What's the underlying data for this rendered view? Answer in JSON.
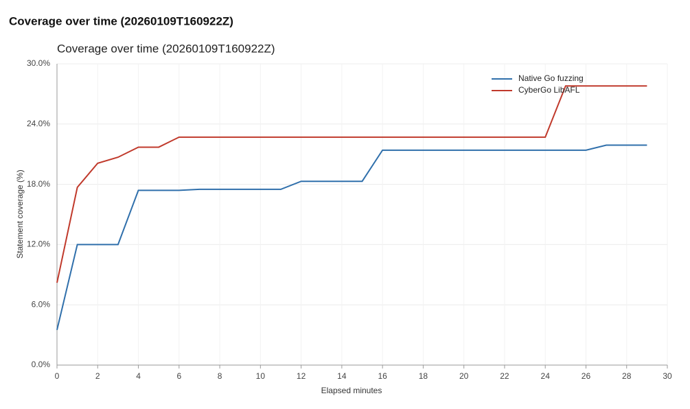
{
  "heading": "Coverage over time (20260109T160922Z)",
  "chart_data": {
    "type": "line",
    "title": "Coverage over time (20260109T160922Z)",
    "x_label": "Elapsed minutes",
    "y_label": "Statement coverage (%)",
    "x": [
      0,
      1,
      2,
      3,
      4,
      5,
      6,
      7,
      8,
      9,
      10,
      11,
      12,
      13,
      14,
      15,
      16,
      17,
      18,
      19,
      20,
      21,
      22,
      23,
      24,
      25,
      26,
      27,
      28,
      29
    ],
    "series": [
      {
        "name": "Native Go fuzzing",
        "color": "#2f6fab",
        "values": [
          3.5,
          12.0,
          12.0,
          12.0,
          17.4,
          17.4,
          17.4,
          17.5,
          17.5,
          17.5,
          17.5,
          17.5,
          18.3,
          18.3,
          18.3,
          18.3,
          21.4,
          21.4,
          21.4,
          21.4,
          21.4,
          21.4,
          21.4,
          21.4,
          21.4,
          21.4,
          21.4,
          21.9,
          21.9,
          21.9
        ]
      },
      {
        "name": "CyberGo LibAFL",
        "color": "#c0392b",
        "values": [
          8.2,
          17.7,
          20.1,
          20.7,
          21.7,
          21.7,
          22.7,
          22.7,
          22.7,
          22.7,
          22.7,
          22.7,
          22.7,
          22.7,
          22.7,
          22.7,
          22.7,
          22.7,
          22.7,
          22.7,
          22.7,
          22.7,
          22.7,
          22.7,
          22.7,
          27.8,
          27.8,
          27.8,
          27.8,
          27.8
        ]
      }
    ],
    "xlim": [
      0,
      30
    ],
    "ylim": [
      0,
      30
    ],
    "xticks": [
      0,
      2,
      4,
      6,
      8,
      10,
      12,
      14,
      16,
      18,
      20,
      22,
      24,
      26,
      28,
      30
    ],
    "yticks": [
      {
        "value": 0,
        "label": "0.0%"
      },
      {
        "value": 6,
        "label": "6.0%"
      },
      {
        "value": 12,
        "label": "12.0%"
      },
      {
        "value": 18,
        "label": "18.0%"
      },
      {
        "value": 24,
        "label": "24.0%"
      },
      {
        "value": 30,
        "label": "30.0%"
      }
    ],
    "grid": true,
    "legend": "top-right"
  }
}
